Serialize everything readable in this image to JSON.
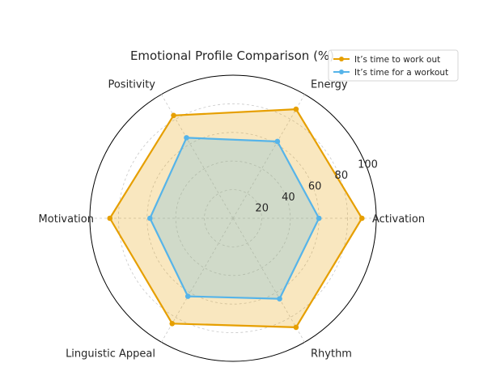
{
  "chart_data": {
    "type": "radar",
    "title": "Emotional Profile Comparison (%)",
    "categories": [
      "Activation",
      "Energy",
      "Positivity",
      "Motivation",
      "Linguistic Appeal",
      "Rhythm"
    ],
    "rlim": [
      0,
      100
    ],
    "radial_ticks": [
      20,
      40,
      60,
      80,
      100
    ],
    "grid": true,
    "legend_position": "top-right",
    "series": [
      {
        "name": "It’s time to work out",
        "values": [
          90,
          88,
          83,
          86,
          85,
          88
        ],
        "color": "#E69F00"
      },
      {
        "name": "It’s time for a workout",
        "values": [
          60,
          62,
          65,
          58,
          63,
          65
        ],
        "color": "#56B4E9"
      }
    ]
  }
}
